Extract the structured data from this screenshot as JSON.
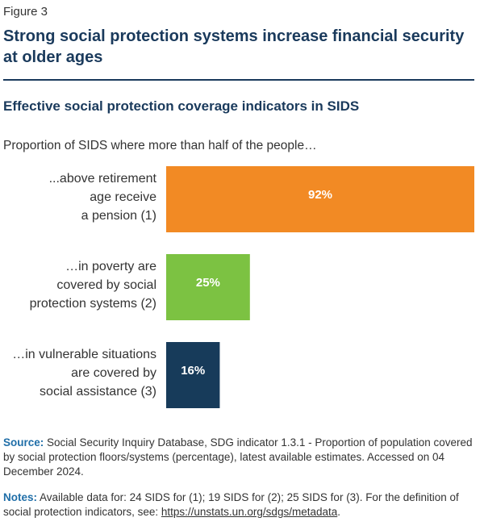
{
  "figure": {
    "label": "Figure 3",
    "title": "Strong social protection systems increase financial security at older ages"
  },
  "chart_data": {
    "type": "bar",
    "orientation": "horizontal",
    "title": "Effective social protection coverage indicators in SIDS",
    "subtitle": "Proportion of SIDS where more than half of the people…",
    "categories": [
      [
        "...above retirement",
        "age receive",
        "a pension (1)"
      ],
      [
        "…in poverty are",
        "covered by social",
        "protection systems (2)"
      ],
      [
        "…in vulnerable situations",
        "are covered by",
        "social assistance (3)"
      ]
    ],
    "values": [
      92,
      25,
      16
    ],
    "value_labels": [
      "92%",
      "25%",
      "16%"
    ],
    "colors": [
      "#f28a24",
      "#7cc242",
      "#173b5a"
    ],
    "xlim": [
      0,
      100
    ],
    "grid": false,
    "legend": "none"
  },
  "footer": {
    "source_label": "Source:",
    "source_text": " Social Security Inquiry Database, SDG indicator 1.3.1 - Proportion of population covered by social protection floors/systems (percentage), latest available estimates. Accessed on 04 December 2024.",
    "notes_label": "Notes:",
    "notes_text": " Available data for: 24 SIDS for (1); 19 SIDS for (2); 25 SIDS for (3). For the definition of social protection indicators, see: ",
    "notes_link": "https://unstats.un.org/sdgs/metadata",
    "notes_end": "."
  }
}
